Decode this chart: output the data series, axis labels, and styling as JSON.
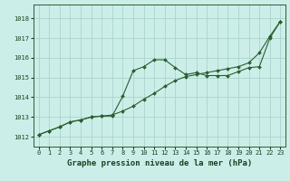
{
  "title": "Graphe pression niveau de la mer (hPa)",
  "bg_color": "#cceee8",
  "grid_color": "#aad4cc",
  "line_color": "#2a5e30",
  "text_color": "#1a4020",
  "xlim": [
    -0.5,
    23.5
  ],
  "ylim": [
    1011.5,
    1018.7
  ],
  "xticks": [
    0,
    1,
    2,
    3,
    4,
    5,
    6,
    7,
    8,
    9,
    10,
    11,
    12,
    13,
    14,
    15,
    16,
    17,
    18,
    19,
    20,
    21,
    22,
    23
  ],
  "yticks": [
    1012,
    1013,
    1014,
    1015,
    1016,
    1017,
    1018
  ],
  "line1_x": [
    0,
    1,
    2,
    3,
    4,
    5,
    6,
    7,
    8,
    9,
    10,
    11,
    12,
    13,
    14,
    15,
    16,
    17,
    18,
    19,
    20,
    21,
    22,
    23
  ],
  "line1_y": [
    1012.1,
    1012.3,
    1012.5,
    1012.75,
    1012.85,
    1013.0,
    1013.05,
    1013.1,
    1013.3,
    1013.55,
    1013.9,
    1014.2,
    1014.55,
    1014.85,
    1015.05,
    1015.15,
    1015.25,
    1015.35,
    1015.45,
    1015.55,
    1015.75,
    1016.25,
    1017.1,
    1017.85
  ],
  "line2_x": [
    0,
    1,
    2,
    3,
    4,
    5,
    6,
    7,
    8,
    9,
    10,
    11,
    12,
    13,
    14,
    15,
    16,
    17,
    18,
    19,
    20,
    21,
    22,
    23
  ],
  "line2_y": [
    1012.1,
    1012.3,
    1012.5,
    1012.75,
    1012.85,
    1013.0,
    1013.05,
    1013.05,
    1014.05,
    1015.35,
    1015.55,
    1015.9,
    1015.9,
    1015.5,
    1015.15,
    1015.25,
    1015.1,
    1015.1,
    1015.1,
    1015.3,
    1015.5,
    1015.55,
    1017.0,
    1017.85
  ]
}
